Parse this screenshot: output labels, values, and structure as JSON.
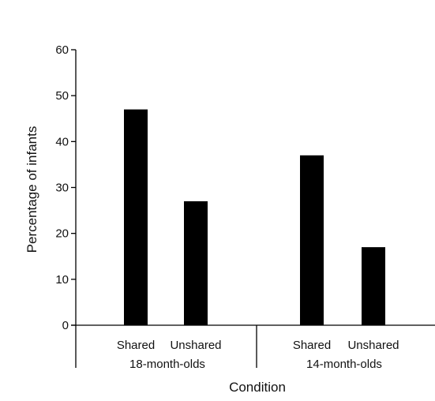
{
  "chart_data": {
    "type": "bar",
    "ylabel": "Percentage of infants",
    "xlabel": "Condition",
    "ylim": [
      0,
      60
    ],
    "yticks": [
      0,
      10,
      20,
      30,
      40,
      50,
      60
    ],
    "grid": false,
    "groups": [
      {
        "label": "18-month-olds",
        "categories": [
          "Shared",
          "Unshared"
        ],
        "values": [
          47,
          27
        ]
      },
      {
        "label": "14-month-olds",
        "categories": [
          "Shared",
          "Unshared"
        ],
        "values": [
          37,
          17
        ]
      }
    ],
    "bar_color": "#000000"
  }
}
